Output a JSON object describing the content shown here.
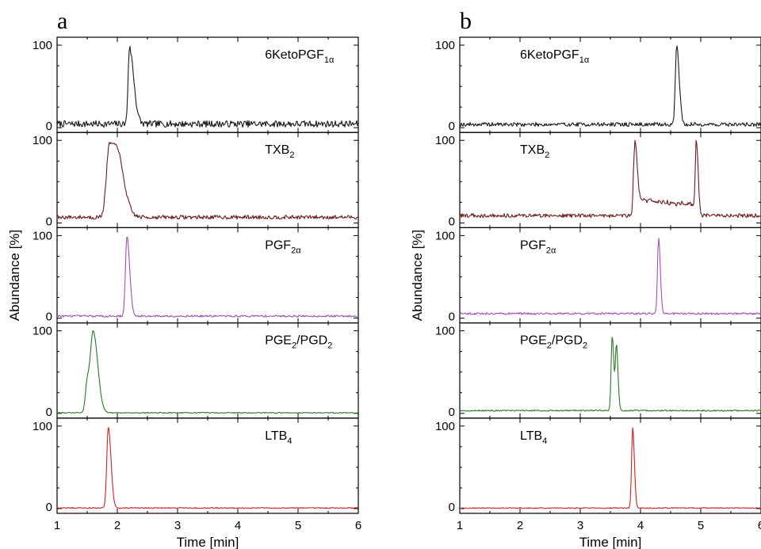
{
  "chart_data": [
    {
      "type": "line",
      "panel": "a",
      "xlabel": "Time [min]",
      "ylabel": "Abundance [%]",
      "xlim": [
        1,
        6
      ],
      "xticks": [
        "1",
        "2",
        "3",
        "4",
        "5",
        "6"
      ],
      "ylim": [
        0,
        100
      ],
      "yticks": [
        "0",
        "100"
      ],
      "noise_seed": 7,
      "series": [
        {
          "name": "6KetoPGF1α",
          "label_main": "6KetoPGF",
          "label_sub": "1α",
          "color": "#1a1a1a",
          "baseline": 3,
          "noise": 5,
          "peaks": [
            {
              "x": 2.2,
              "height": 92,
              "width": 0.022,
              "tail": 0.05
            }
          ]
        },
        {
          "name": "TXB2",
          "label_main": "TXB",
          "label_sub": "2",
          "color": "#6b1c1c",
          "baseline": 6,
          "noise": 3,
          "peaks": [
            {
              "x": 1.87,
              "height": 88,
              "width": 0.05,
              "tail": 0.06
            },
            {
              "x": 2.03,
              "height": 48,
              "width": 0.06,
              "tail": 0.05
            }
          ]
        },
        {
          "name": "PGF2α",
          "label_main": "PGF",
          "label_sub": "2α",
          "color": "#a050b4",
          "baseline": 2,
          "noise": 1.5,
          "peaks": [
            {
              "x": 2.16,
              "height": 97,
              "width": 0.025,
              "tail": 0.02
            }
          ]
        },
        {
          "name": "PGE2/PGD2",
          "label_main": "PGE",
          "label_sub": "2",
          "label_main2": "/PGD",
          "label_sub2": "2",
          "color": "#2a7a2a",
          "baseline": 0.5,
          "noise": 0.8,
          "peaks": [
            {
              "x": 1.6,
              "height": 98,
              "width": 0.045,
              "tail": 0.03
            },
            {
              "x": 1.5,
              "height": 35,
              "width": 0.03,
              "tail": 0.01
            }
          ]
        },
        {
          "name": "LTB4",
          "label_main": "LTB",
          "label_sub": "4",
          "color": "#d02020",
          "baseline": 0.5,
          "noise": 0.8,
          "peaks": [
            {
              "x": 1.85,
              "height": 98,
              "width": 0.025,
              "tail": 0.02
            }
          ]
        }
      ]
    },
    {
      "type": "line",
      "panel": "b",
      "xlabel": "Time [min]",
      "ylabel": "Abundance [%]",
      "xlim": [
        1,
        6
      ],
      "xticks": [
        "1",
        "2",
        "3",
        "4",
        "5",
        "6"
      ],
      "ylim": [
        0,
        100
      ],
      "yticks": [
        "0",
        "100"
      ],
      "noise_seed": 19,
      "series": [
        {
          "name": "6KetoPGF1α",
          "label_main": "6KetoPGF",
          "label_sub": "1α",
          "color": "#1a1a1a",
          "baseline": 3,
          "noise": 3,
          "peaks": [
            {
              "x": 4.6,
              "height": 96,
              "width": 0.022,
              "tail": 0.02
            }
          ]
        },
        {
          "name": "TXB2",
          "label_main": "TXB",
          "label_sub": "2",
          "color": "#6b1c1c",
          "baseline": 8,
          "noise": 3,
          "plateau": {
            "from": 3.9,
            "to": 4.93,
            "level_start": 20,
            "level_end": 12
          },
          "peaks": [
            {
              "x": 3.9,
              "height": 78,
              "width": 0.02,
              "tail": 0.02
            },
            {
              "x": 4.93,
              "height": 88,
              "width": 0.018,
              "tail": 0.01
            }
          ]
        },
        {
          "name": "PGF2α",
          "label_main": "PGF",
          "label_sub": "2α",
          "color": "#a050b4",
          "baseline": 5,
          "noise": 1.5,
          "peaks": [
            {
              "x": 4.3,
              "height": 93,
              "width": 0.018,
              "tail": 0.01
            }
          ]
        },
        {
          "name": "PGE2/PGD2",
          "label_main": "PGE",
          "label_sub": "2",
          "label_main2": "/PGD",
          "label_sub2": "2",
          "color": "#2a7a2a",
          "baseline": 3,
          "noise": 1,
          "peaks": [
            {
              "x": 3.53,
              "height": 90,
              "width": 0.018,
              "tail": 0.01
            },
            {
              "x": 3.6,
              "height": 78,
              "width": 0.016,
              "tail": 0.01
            }
          ]
        },
        {
          "name": "LTB4",
          "label_main": "LTB",
          "label_sub": "4",
          "color": "#d02020",
          "baseline": 0.5,
          "noise": 0.7,
          "peaks": [
            {
              "x": 3.87,
              "height": 98,
              "width": 0.018,
              "tail": 0.01
            }
          ]
        }
      ]
    }
  ]
}
